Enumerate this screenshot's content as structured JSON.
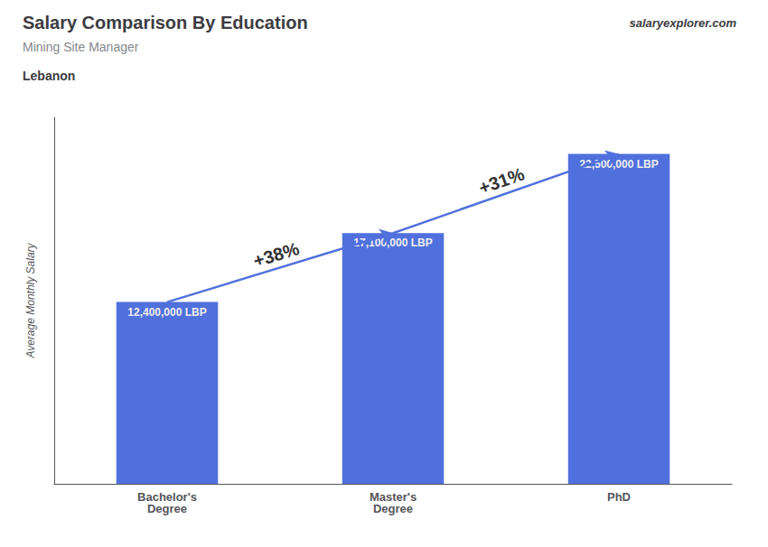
{
  "chart_data": {
    "type": "bar",
    "title": "Salary Comparison By Education",
    "subtitle": "Mining Site Manager",
    "ylabel": "Average Monthly Salary",
    "categories": [
      "Bachelor's\nDegree",
      "Master's\nDegree",
      "PhD"
    ],
    "values": [
      12400000,
      17100000,
      22500000
    ],
    "value_labels": [
      "12,400,000 LBP",
      "17,100,000 LBP",
      "22,500,000 LBP"
    ],
    "data_labels": true,
    "ylim": [
      0,
      25000000
    ],
    "tick_labels": "x",
    "grid": false,
    "annotations": [
      {
        "text": "+38%",
        "from": "Bachelor's\nDegree",
        "to": "Master's\nDegree"
      },
      {
        "text": "+31%",
        "from": "Master's\nDegree",
        "to": "PhD"
      },
      {
        "text": "Lebanon"
      },
      {
        "text": "salaryexplorer.com"
      }
    ]
  }
}
